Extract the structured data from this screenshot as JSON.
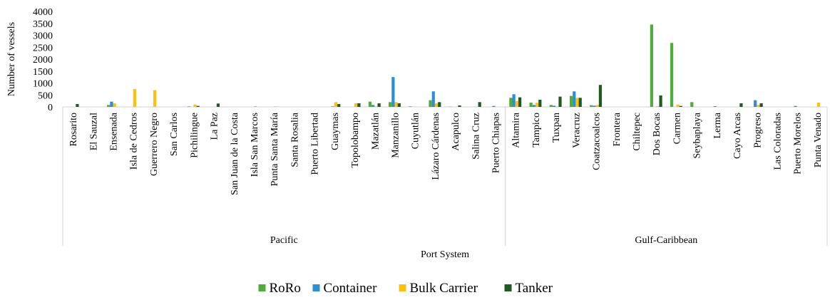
{
  "chart_data": {
    "type": "bar",
    "y_label": "Number of vessels",
    "x_label": "Port System",
    "groups": [
      {
        "label": "Pacific",
        "categories": [
          "Rosarito",
          "El Sauzal",
          "Ensenada",
          "Isla de Cedros",
          "Guerrero Negro",
          "San Carlos",
          "Pichilingue",
          "La Paz",
          "San Juan de la Costa",
          "Isla San Marcos",
          "Punta Santa María",
          "Santa Rosalia",
          "Puerto Libertad",
          "Guaymas",
          "Topolobampo",
          "Mazatlán",
          "Manzanillo",
          "Cuyutlán",
          "Lázaro Cárdenas",
          "Acapulco",
          "Salina Cruz",
          "Puerto Chiapas"
        ]
      },
      {
        "label": "Gulf-Caribbean",
        "categories": [
          "Altamira",
          "Tampico",
          "Tuxpan",
          "Veracruz",
          "Coatzacoalcos",
          "Frontera",
          "Chiltepec",
          "Dos Bocas",
          "Carmen",
          "Seybaplaya",
          "Lerma",
          "Cayo Arcas",
          "Progreso",
          "Las Coloradas",
          "Puerto Morelos",
          "Punta Venado"
        ]
      }
    ],
    "series": [
      {
        "name": "RoRo",
        "color": "#4fae3b",
        "values": [
          0,
          0,
          80,
          0,
          0,
          0,
          20,
          0,
          0,
          0,
          0,
          0,
          0,
          0,
          0,
          220,
          200,
          20,
          280,
          10,
          0,
          0,
          380,
          180,
          80,
          460,
          70,
          0,
          0,
          3450,
          2680,
          200,
          0,
          0,
          0,
          0,
          0,
          0
        ]
      },
      {
        "name": "Container",
        "color": "#2e8fd4",
        "values": [
          0,
          0,
          220,
          0,
          0,
          0,
          0,
          0,
          0,
          0,
          0,
          0,
          0,
          20,
          0,
          80,
          1250,
          0,
          650,
          0,
          0,
          40,
          530,
          80,
          50,
          650,
          50,
          0,
          0,
          0,
          0,
          0,
          30,
          0,
          280,
          0,
          40,
          0
        ]
      },
      {
        "name": "Bulk Carrier",
        "color": "#fdc010",
        "values": [
          0,
          0,
          150,
          750,
          700,
          0,
          100,
          0,
          0,
          30,
          20,
          0,
          0,
          200,
          150,
          20,
          200,
          0,
          150,
          0,
          0,
          0,
          250,
          170,
          20,
          380,
          80,
          0,
          0,
          30,
          100,
          0,
          0,
          0,
          80,
          0,
          0,
          180
        ]
      },
      {
        "name": "Tanker",
        "color": "#1f5a22",
        "values": [
          120,
          0,
          0,
          0,
          0,
          0,
          40,
          140,
          0,
          0,
          0,
          0,
          0,
          120,
          150,
          150,
          150,
          0,
          200,
          60,
          200,
          0,
          400,
          300,
          430,
          380,
          920,
          0,
          0,
          480,
          40,
          0,
          0,
          150,
          150,
          0,
          0,
          0
        ]
      }
    ],
    "ylim": [
      0,
      4000
    ],
    "yticks": [
      0,
      500,
      1000,
      1500,
      2000,
      2500,
      3000,
      3500,
      4000
    ]
  }
}
